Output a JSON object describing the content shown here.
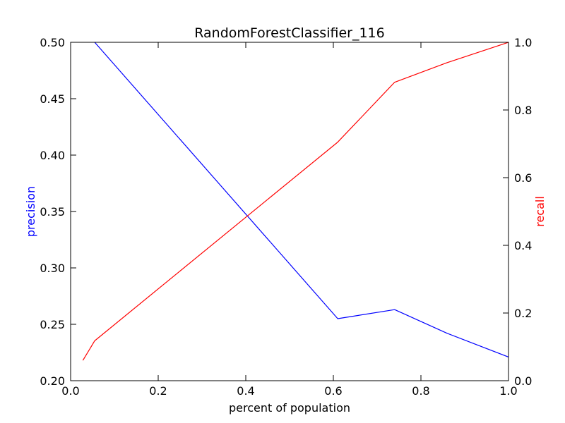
{
  "chart_data": {
    "type": "line",
    "title": "RandomForestClassifier_116",
    "xlabel": "percent of population",
    "ylabel_left": "precision",
    "ylabel_right": "recall",
    "xlim": [
      0.0,
      1.0
    ],
    "ylim_left": [
      0.2,
      0.5
    ],
    "ylim_right": [
      0.0,
      1.0
    ],
    "grid": false,
    "x_ticks": [
      "0.0",
      "0.2",
      "0.4",
      "0.6",
      "0.8",
      "1.0"
    ],
    "left_ticks": [
      "0.20",
      "0.25",
      "0.30",
      "0.35",
      "0.40",
      "0.45",
      "0.50"
    ],
    "right_ticks": [
      "0.0",
      "0.2",
      "0.4",
      "0.6",
      "0.8",
      "1.0"
    ],
    "series": [
      {
        "name": "precision",
        "axis": "left",
        "color": "#0000ff",
        "x": [
          0.028,
          0.055,
          0.61,
          0.74,
          0.86,
          1.0
        ],
        "y": [
          0.53,
          0.5,
          0.255,
          0.263,
          0.242,
          0.221
        ]
      },
      {
        "name": "recall",
        "axis": "right",
        "color": "#ff0000",
        "x": [
          0.028,
          0.055,
          0.61,
          0.74,
          0.86,
          1.0
        ],
        "y": [
          0.06,
          0.118,
          0.705,
          0.882,
          0.94,
          1.0
        ]
      }
    ]
  }
}
